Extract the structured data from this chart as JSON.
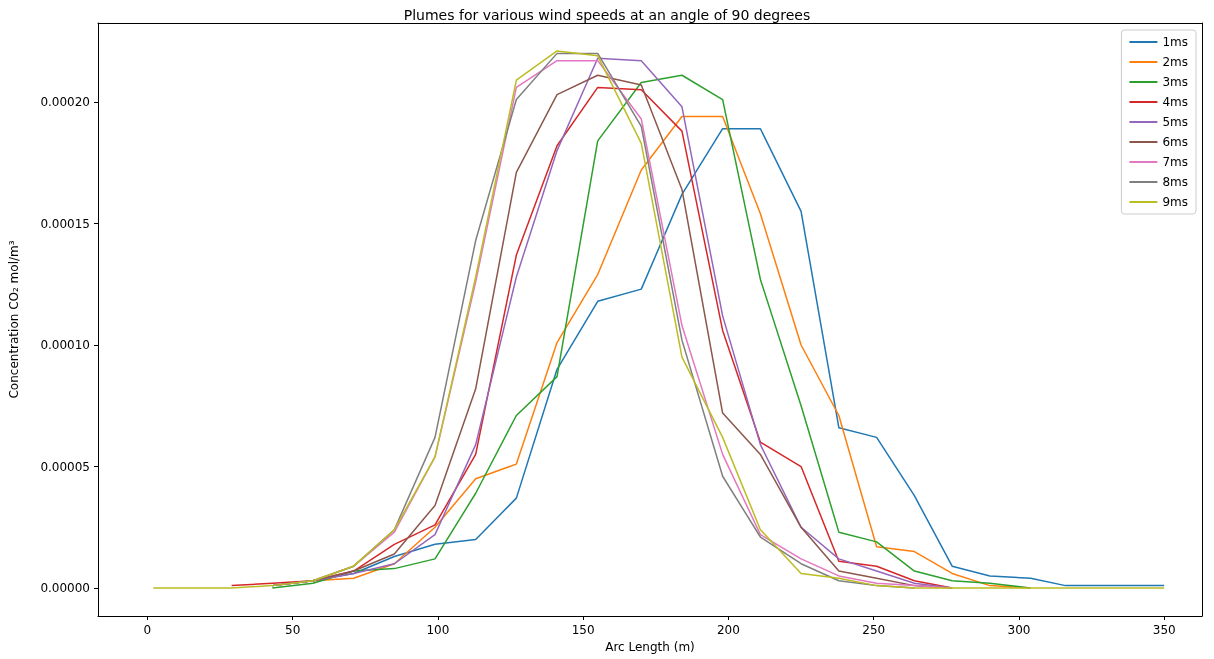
{
  "chart_data": {
    "type": "line",
    "title": "Plumes for various wind speeds at an angle of 90 degrees",
    "xlabel": "Arc Length (m)",
    "ylabel": "Concentration CO₂ mol/m³",
    "x": [
      2,
      15,
      29,
      43,
      57,
      71,
      85,
      99,
      113,
      127,
      141,
      155,
      170,
      184,
      198,
      211,
      225,
      238,
      251,
      264,
      277,
      290,
      304,
      316,
      350
    ],
    "xlim": [
      -17,
      363
    ],
    "xticks": [
      0,
      50,
      100,
      150,
      200,
      250,
      300,
      350
    ],
    "ylim": [
      -1.15e-05,
      0.0002325
    ],
    "yticks": [
      {
        "value": 0,
        "label": "0.00000"
      },
      {
        "value": 5e-05,
        "label": "0.00005"
      },
      {
        "value": 0.0001,
        "label": "0.00010"
      },
      {
        "value": 0.00015,
        "label": "0.00015"
      },
      {
        "value": 0.0002,
        "label": "0.00020"
      }
    ],
    "grid": false,
    "legend": "top right",
    "marker": "none",
    "line_style": "solid",
    "series": [
      {
        "name": "1ms",
        "color": "#1f77b4",
        "values": [
          null,
          null,
          null,
          1e-06,
          3e-06,
          6e-06,
          1.3e-05,
          1.8e-05,
          2e-05,
          3.7e-05,
          9e-05,
          0.000118,
          0.000123,
          0.000162,
          0.000189,
          0.000189,
          0.000155,
          6.6e-05,
          6.2e-05,
          3.8e-05,
          9e-06,
          5e-06,
          4e-06,
          1e-06,
          1e-06
        ]
      },
      {
        "name": "2ms",
        "color": "#ff7f0e",
        "values": [
          null,
          null,
          null,
          1e-06,
          3e-06,
          4e-06,
          1e-05,
          2.5e-05,
          4.5e-05,
          5.1e-05,
          0.000101,
          0.000129,
          0.000172,
          0.000194,
          0.000194,
          0.000154,
          0.0001,
          7.1e-05,
          1.7e-05,
          1.5e-05,
          6e-06,
          1e-06,
          0,
          null,
          null
        ]
      },
      {
        "name": "3ms",
        "color": "#2ca02c",
        "values": [
          null,
          null,
          null,
          0,
          2e-06,
          7e-06,
          8e-06,
          1.2e-05,
          3.9e-05,
          7.1e-05,
          8.7e-05,
          0.000184,
          0.000208,
          0.000211,
          0.000201,
          0.000127,
          7.5e-05,
          2.3e-05,
          1.9e-05,
          7e-06,
          3e-06,
          2e-06,
          0,
          null,
          null
        ]
      },
      {
        "name": "4ms",
        "color": "#d62728",
        "values": [
          null,
          null,
          1e-06,
          2e-06,
          3e-06,
          7e-06,
          1.8e-05,
          2.6e-05,
          5.5e-05,
          0.000137,
          0.000182,
          0.000206,
          0.000205,
          0.000188,
          0.000106,
          6e-05,
          5e-05,
          1.1e-05,
          9e-06,
          3e-06,
          0,
          null,
          null,
          null,
          null
        ]
      },
      {
        "name": "5ms",
        "color": "#9467bd",
        "values": [
          null,
          null,
          null,
          1e-06,
          3e-06,
          6e-06,
          1e-05,
          2.2e-05,
          5.9e-05,
          0.000128,
          0.00018,
          0.000218,
          0.000217,
          0.000198,
          0.000112,
          5.9e-05,
          2.5e-05,
          1.2e-05,
          7e-06,
          2e-06,
          0,
          null,
          null,
          null,
          null
        ]
      },
      {
        "name": "6ms",
        "color": "#8c564b",
        "values": [
          null,
          null,
          null,
          1e-06,
          3e-06,
          7e-06,
          1.4e-05,
          3.4e-05,
          8.2e-05,
          0.000171,
          0.000203,
          0.000211,
          0.000207,
          0.000164,
          7.2e-05,
          5.5e-05,
          2.5e-05,
          7e-06,
          4e-06,
          1e-06,
          0,
          null,
          null,
          null,
          null
        ]
      },
      {
        "name": "7ms",
        "color": "#e377c2",
        "values": [
          null,
          null,
          null,
          1e-06,
          3e-06,
          9e-06,
          2.3e-05,
          5.4e-05,
          0.000126,
          0.000206,
          0.000217,
          0.000217,
          0.000193,
          0.000108,
          5.5e-05,
          2.2e-05,
          1.2e-05,
          5e-06,
          2e-06,
          1e-06,
          0,
          null,
          null,
          null,
          null
        ]
      },
      {
        "name": "8ms",
        "color": "#7f7f7f",
        "values": [
          null,
          null,
          null,
          1e-06,
          3e-06,
          9e-06,
          2.4e-05,
          6.2e-05,
          0.000143,
          0.000201,
          0.00022,
          0.00022,
          0.00019,
          0.000102,
          4.6e-05,
          2.1e-05,
          1e-05,
          3e-06,
          1e-06,
          0,
          null,
          null,
          null,
          null,
          null
        ]
      },
      {
        "name": "9ms",
        "color": "#bcbd22",
        "values": [
          0,
          0,
          0,
          1e-06,
          3e-06,
          9e-06,
          2.4e-05,
          5.4e-05,
          0.000128,
          0.000209,
          0.000221,
          0.000219,
          0.000183,
          9.5e-05,
          6.2e-05,
          2.4e-05,
          6e-06,
          4e-06,
          1e-06,
          0,
          0,
          0,
          0,
          0,
          0
        ]
      }
    ]
  }
}
